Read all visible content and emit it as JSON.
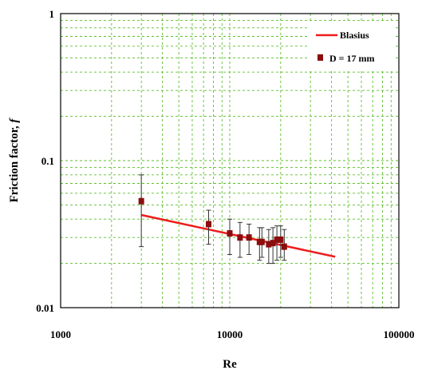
{
  "chart_data": {
    "type": "scatter",
    "xscale": "log",
    "yscale": "log",
    "xlim": [
      1000,
      100000
    ],
    "ylim": [
      0.01,
      1
    ],
    "xlabel": "Re",
    "ylabel_text": "Friction factor,",
    "ylabel_symbol": "f",
    "grid": true,
    "legend_position": "top-right",
    "x_tick_labels": [
      "1000",
      "10000",
      "100000"
    ],
    "y_tick_labels": [
      "0.01",
      "0.1",
      "1"
    ],
    "colors": {
      "line": "#ee1c1c",
      "marker": "#8b0d0d",
      "grid": "#5cbf2a",
      "errorbar": "#333333"
    },
    "series": [
      {
        "name": "Blasius",
        "kind": "line",
        "x": [
          3000,
          42000
        ],
        "y": [
          0.0427,
          0.0222
        ]
      },
      {
        "name": "D = 17 mm",
        "kind": "points-with-errorbars",
        "points": [
          {
            "x": 3000,
            "y": 0.053,
            "lo": 0.026,
            "hi": 0.08
          },
          {
            "x": 7500,
            "y": 0.037,
            "lo": 0.027,
            "hi": 0.046
          },
          {
            "x": 10000,
            "y": 0.032,
            "lo": 0.023,
            "hi": 0.04
          },
          {
            "x": 11500,
            "y": 0.03,
            "lo": 0.022,
            "hi": 0.038
          },
          {
            "x": 13000,
            "y": 0.03,
            "lo": 0.023,
            "hi": 0.037
          },
          {
            "x": 15000,
            "y": 0.028,
            "lo": 0.021,
            "hi": 0.035
          },
          {
            "x": 15500,
            "y": 0.028,
            "lo": 0.022,
            "hi": 0.035
          },
          {
            "x": 17000,
            "y": 0.027,
            "lo": 0.02,
            "hi": 0.034
          },
          {
            "x": 18000,
            "y": 0.0275,
            "lo": 0.02,
            "hi": 0.035
          },
          {
            "x": 19000,
            "y": 0.029,
            "lo": 0.021,
            "hi": 0.036
          },
          {
            "x": 20000,
            "y": 0.029,
            "lo": 0.022,
            "hi": 0.036
          },
          {
            "x": 21000,
            "y": 0.026,
            "lo": 0.021,
            "hi": 0.034
          }
        ]
      }
    ]
  }
}
